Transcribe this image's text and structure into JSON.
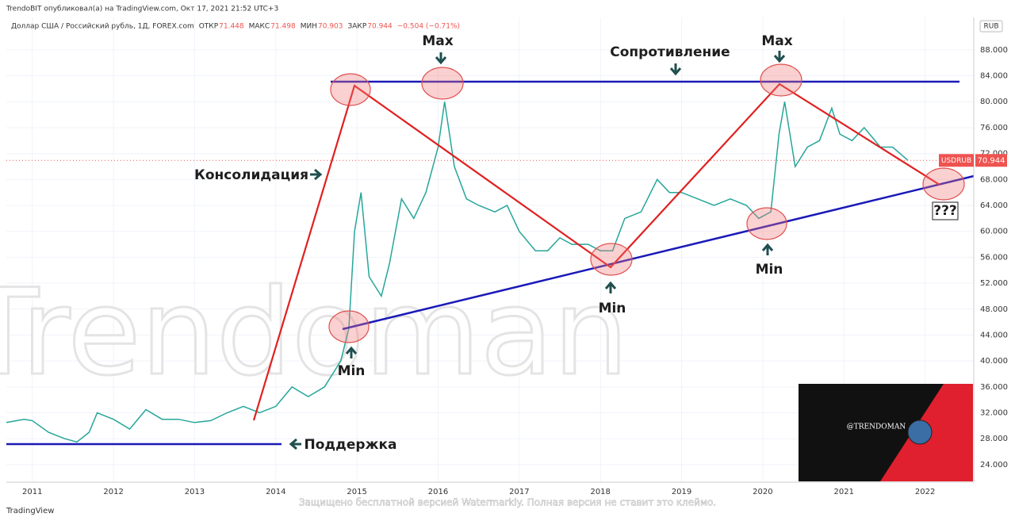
{
  "header": {
    "publisher": "TrendoBIT опубликовал(а) на TradingView.com, Окт 17, 2021 21:52 UTC+3",
    "symbol": "Доллар США / Российский рубль, 1Д, FOREX.com",
    "open_label": "ОТКР",
    "open": "71.448",
    "high_label": "МАКС",
    "high": "71.498",
    "low_label": "МИН",
    "low": "70.903",
    "close_label": "ЗАКР",
    "close": "70.944",
    "change": "−0.504 (−0.71%)"
  },
  "chart_data": {
    "type": "line",
    "currency": "RUB",
    "x": [
      2010.68,
      2010.9,
      2011.0,
      2011.2,
      2011.4,
      2011.55,
      2011.7,
      2011.8,
      2012.0,
      2012.2,
      2012.4,
      2012.6,
      2012.8,
      2013.0,
      2013.2,
      2013.4,
      2013.6,
      2013.8,
      2014.0,
      2014.2,
      2014.4,
      2014.6,
      2014.8,
      2014.9,
      2014.97,
      2015.05,
      2015.15,
      2015.3,
      2015.4,
      2015.55,
      2015.7,
      2015.85,
      2016.0,
      2016.08,
      2016.2,
      2016.35,
      2016.5,
      2016.7,
      2016.85,
      2017.0,
      2017.2,
      2017.35,
      2017.5,
      2017.65,
      2017.85,
      2018.0,
      2018.15,
      2018.3,
      2018.5,
      2018.7,
      2018.85,
      2019.0,
      2019.2,
      2019.4,
      2019.6,
      2019.8,
      2019.95,
      2020.1,
      2020.2,
      2020.27,
      2020.4,
      2020.55,
      2020.7,
      2020.85,
      2020.95,
      2021.1,
      2021.25,
      2021.45,
      2021.6,
      2021.79
    ],
    "series": [
      {
        "name": "USDRUB",
        "color": "#26a69a",
        "values": [
          30.5,
          31,
          30.8,
          29,
          28,
          27.5,
          29,
          32,
          31,
          29.5,
          32.5,
          31,
          31,
          30.5,
          30.8,
          32,
          33,
          32,
          33,
          36,
          34.5,
          36,
          40,
          45,
          60,
          66,
          53,
          50,
          55,
          65,
          62,
          66,
          73,
          80,
          70,
          65,
          64,
          63,
          64,
          60,
          57,
          57,
          59,
          58,
          58,
          57,
          57,
          62,
          63,
          68,
          66,
          66,
          65,
          64,
          65,
          64,
          62,
          63,
          75,
          80,
          70,
          73,
          74,
          79,
          75,
          74,
          76,
          73,
          73,
          70.944
        ]
      }
    ],
    "xlim": [
      2010.68,
      2022.6
    ],
    "xticks": [
      2011,
      2012,
      2013,
      2014,
      2015,
      2016,
      2017,
      2018,
      2019,
      2020,
      2021,
      2022
    ],
    "ylim": [
      21.3,
      93
    ],
    "yticks": [
      {
        "value": 24,
        "label": "24.000"
      },
      {
        "value": 28,
        "label": "28.000"
      },
      {
        "value": 32,
        "label": "32.000"
      },
      {
        "value": 36,
        "label": "36.000"
      },
      {
        "value": 40,
        "label": "40.000"
      },
      {
        "value": 44,
        "label": "44.000"
      },
      {
        "value": 48,
        "label": "48.000"
      },
      {
        "value": 52,
        "label": "52.000"
      },
      {
        "value": 56,
        "label": "56.000"
      },
      {
        "value": 60,
        "label": "60.000"
      },
      {
        "value": 64,
        "label": "64.000"
      },
      {
        "value": 68,
        "label": "68.000"
      },
      {
        "value": 72,
        "label": "72.000"
      },
      {
        "value": 76,
        "label": "76.000"
      },
      {
        "value": 80,
        "label": "80.000"
      },
      {
        "value": 84,
        "label": "84.000"
      },
      {
        "value": 88,
        "label": "88.000"
      }
    ],
    "grid": true
  },
  "annotations": {
    "max1": "Max",
    "resistance": "Сопротивление",
    "max2": "Max",
    "consolidation": "Консолидация",
    "support": "Поддержка",
    "min1": "Min",
    "min2": "Min",
    "min3": "Min",
    "unknown": "???"
  },
  "watermark": "@Trendoman",
  "inset": "@TRENDOMAN",
  "footer": {
    "brand": "TradingView",
    "notice": "Защищено бесплатной версией Watermarkly. Полная версия не ставит это клеймо."
  }
}
